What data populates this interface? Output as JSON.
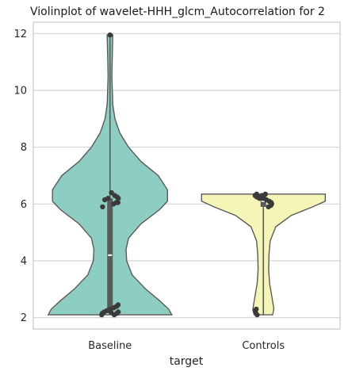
{
  "chart_data": {
    "type": "violin",
    "title": "Violinplot of wavelet-HHH_glcm_Autocorrelation for 2",
    "xlabel": "target",
    "ylabel": "",
    "ylim": [
      1.6,
      12.4
    ],
    "yticks": [
      2,
      4,
      6,
      8,
      10,
      12
    ],
    "grid": true,
    "categories": [
      "Baseline",
      "Controls"
    ],
    "colors": {
      "Baseline": "#8ecdc2",
      "Controls": "#f6f5b8",
      "points": "#3a3a3a",
      "outline": "#5a5a5a"
    },
    "series": [
      {
        "category": "Baseline",
        "median": 4.2,
        "q1": 2.3,
        "q3": 6.2,
        "whisker": [
          2.1,
          11.9
        ],
        "density_profile": [
          [
            2.1,
            1.0
          ],
          [
            2.3,
            0.95
          ],
          [
            2.6,
            0.8
          ],
          [
            3.0,
            0.58
          ],
          [
            3.5,
            0.36
          ],
          [
            4.0,
            0.27
          ],
          [
            4.4,
            0.26
          ],
          [
            4.8,
            0.3
          ],
          [
            5.3,
            0.5
          ],
          [
            5.8,
            0.8
          ],
          [
            6.1,
            0.93
          ],
          [
            6.5,
            0.93
          ],
          [
            7.0,
            0.78
          ],
          [
            7.5,
            0.5
          ],
          [
            8.0,
            0.3
          ],
          [
            8.5,
            0.16
          ],
          [
            9.0,
            0.08
          ],
          [
            9.5,
            0.045
          ],
          [
            10.5,
            0.03
          ],
          [
            11.5,
            0.04
          ],
          [
            11.95,
            0.045
          ]
        ],
        "points": [
          11.95,
          6.0,
          6.05,
          6.05,
          6.2,
          6.25,
          6.3,
          6.4,
          6.2,
          6.15,
          5.9,
          2.1,
          2.15,
          2.2,
          2.25,
          2.3,
          2.35,
          2.4,
          2.45,
          2.2,
          2.15,
          2.1,
          2.2
        ]
      },
      {
        "category": "Controls",
        "median": 6.1,
        "q1": 5.9,
        "q3": 6.3,
        "whisker": [
          2.1,
          6.35
        ],
        "density_profile": [
          [
            2.1,
            0.15
          ],
          [
            2.3,
            0.17
          ],
          [
            2.7,
            0.14
          ],
          [
            3.2,
            0.1
          ],
          [
            3.7,
            0.085
          ],
          [
            4.2,
            0.09
          ],
          [
            4.7,
            0.11
          ],
          [
            5.2,
            0.2
          ],
          [
            5.6,
            0.45
          ],
          [
            5.9,
            0.8
          ],
          [
            6.1,
            1.0
          ],
          [
            6.35,
            1.0
          ]
        ],
        "points": [
          6.35,
          6.3,
          6.3,
          6.25,
          6.2,
          6.2,
          6.15,
          6.1,
          6.05,
          6.0,
          5.95,
          5.9,
          6.35,
          6.3,
          6.25,
          2.3,
          2.25,
          2.2,
          2.1
        ]
      }
    ]
  }
}
